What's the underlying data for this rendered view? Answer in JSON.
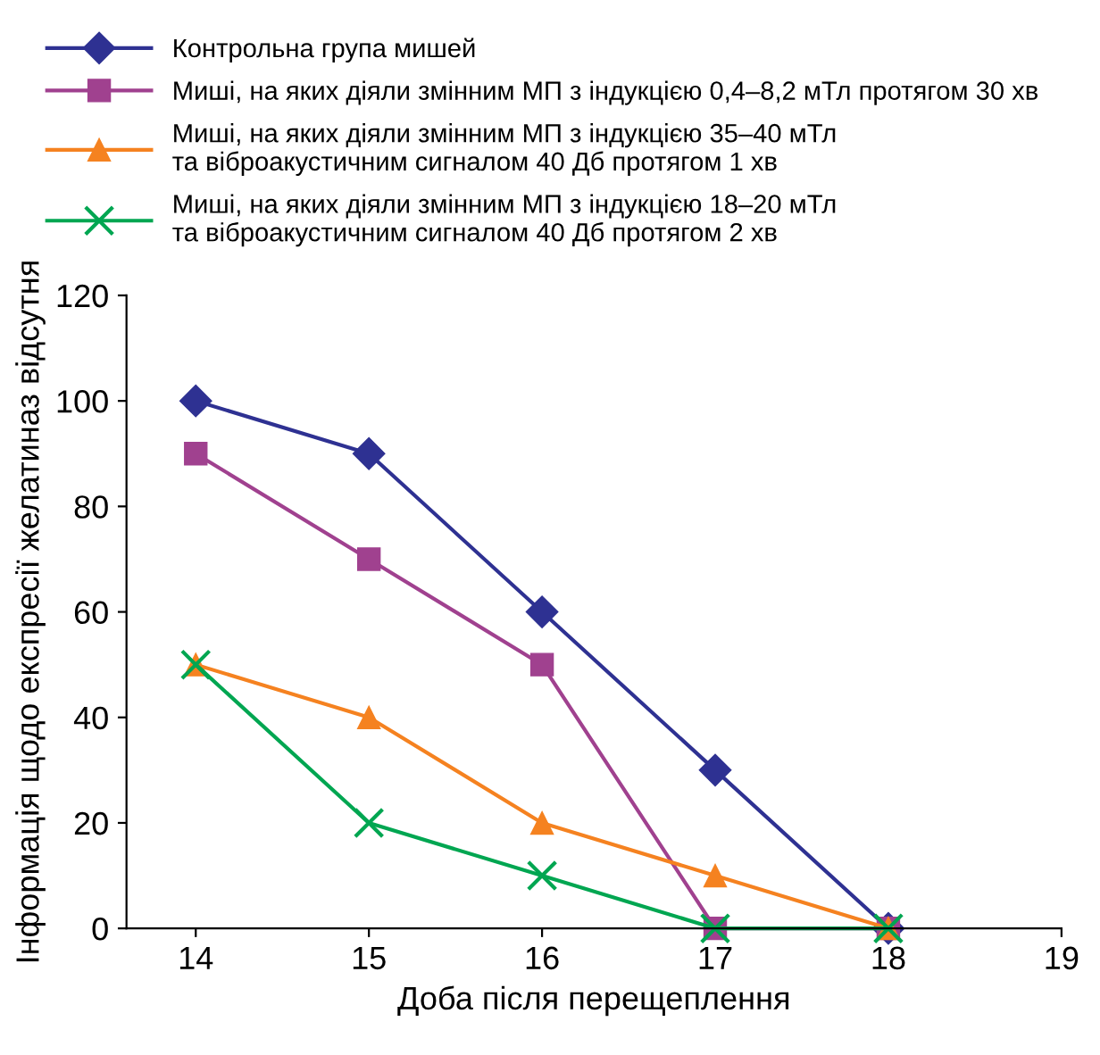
{
  "chart_data": {
    "type": "line",
    "xlabel": "Доба після перещеплення",
    "ylabel": "Інформація щодо експресії желатиназ відсутня",
    "x": [
      14,
      15,
      16,
      17,
      18
    ],
    "xlim": [
      13.6,
      19
    ],
    "xticks": [
      14,
      15,
      16,
      17,
      18,
      19
    ],
    "ylim": [
      0,
      120
    ],
    "yticks": [
      0,
      20,
      40,
      60,
      80,
      100,
      120
    ],
    "grid": false,
    "legend": "top",
    "series": [
      {
        "name": "Контрольна група мишей",
        "color": "#2e3192",
        "marker": "diamond",
        "values": [
          100,
          90,
          60,
          30,
          0
        ]
      },
      {
        "name": "Миші, на яких діяли змінним МП з індукцією 0,4–8,2 мТл протягом 30 хв",
        "color": "#a0418f",
        "marker": "square",
        "values": [
          90,
          70,
          50,
          0,
          0
        ]
      },
      {
        "name": "Миші, на яких діяли змінним МП з індукцією 35–40 мТл\nта віброакустичним сигналом 40 Дб протягом 1 хв",
        "color": "#f58220",
        "marker": "triangle",
        "values": [
          50,
          40,
          20,
          10,
          0
        ]
      },
      {
        "name": "Миші, на яких діяли змінним МП з індукцією 18–20 мТл\nта віброакустичним сигналом 40 Дб протягом 2 хв",
        "color": "#00a651",
        "marker": "cross",
        "values": [
          50,
          20,
          10,
          0,
          0
        ]
      }
    ]
  }
}
